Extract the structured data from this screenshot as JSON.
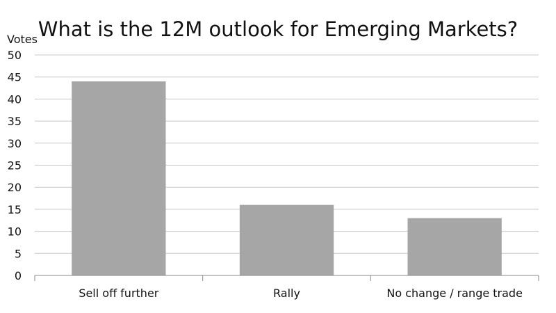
{
  "chart_data": {
    "type": "bar",
    "title": "What is the 12M outlook for Emerging Markets?",
    "xlabel": "",
    "ylabel": "Votes",
    "categories": [
      "Sell off further",
      "Rally",
      "No change / range trade"
    ],
    "values": [
      44,
      16,
      13
    ],
    "ylim": [
      0,
      50
    ],
    "yticks": [
      0,
      5,
      10,
      15,
      20,
      25,
      30,
      35,
      40,
      45,
      50
    ],
    "grid": true,
    "legend": "none",
    "bar_color": "#a6a6a6"
  }
}
